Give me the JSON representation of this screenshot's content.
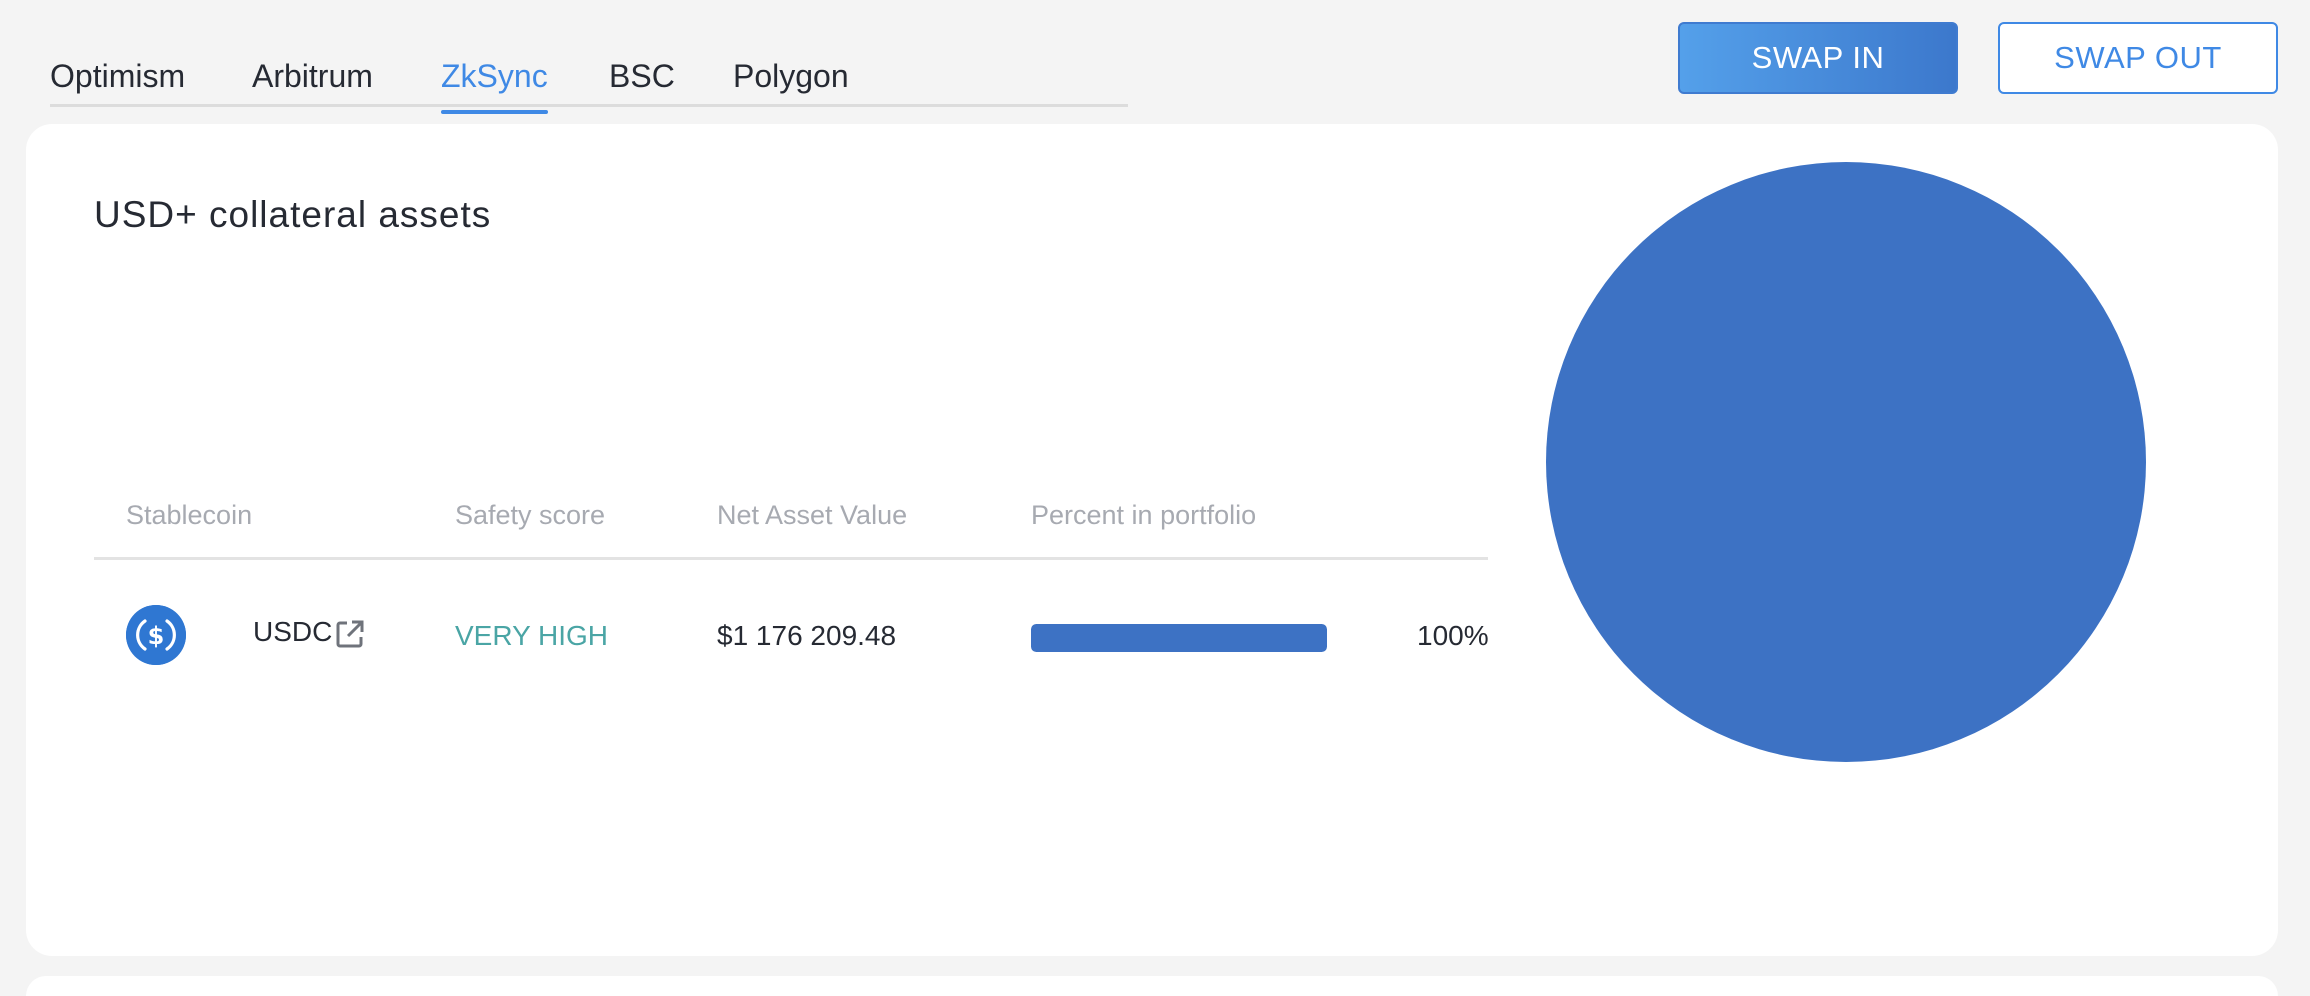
{
  "tabs": [
    {
      "label": "Optimism",
      "active": false
    },
    {
      "label": "Arbitrum",
      "active": false
    },
    {
      "label": "ZkSync",
      "active": true
    },
    {
      "label": "BSC",
      "active": false
    },
    {
      "label": "Polygon",
      "active": false
    }
  ],
  "actions": {
    "swap_in": "SWAP IN",
    "swap_out": "SWAP OUT"
  },
  "card": {
    "title": "USD+ collateral assets"
  },
  "table": {
    "headers": [
      "Stablecoin",
      "Safety score",
      "Net Asset Value",
      "Percent in portfolio"
    ],
    "rows": [
      {
        "icon": "usdc-icon",
        "stablecoin": "USDC",
        "safety_score": "VERY HIGH",
        "net_asset_value": "$1 176 209.48",
        "percent": "100%",
        "percent_value": 100
      }
    ]
  },
  "chart_data": {
    "type": "pie",
    "categories": [
      "USDC"
    ],
    "values": [
      100
    ]
  },
  "colors": {
    "accent": "#3f89e5",
    "pie_fill": "#3d72c4",
    "safety_very_high": "#4aa5a5",
    "usdc_blue": "#2f77d2"
  }
}
